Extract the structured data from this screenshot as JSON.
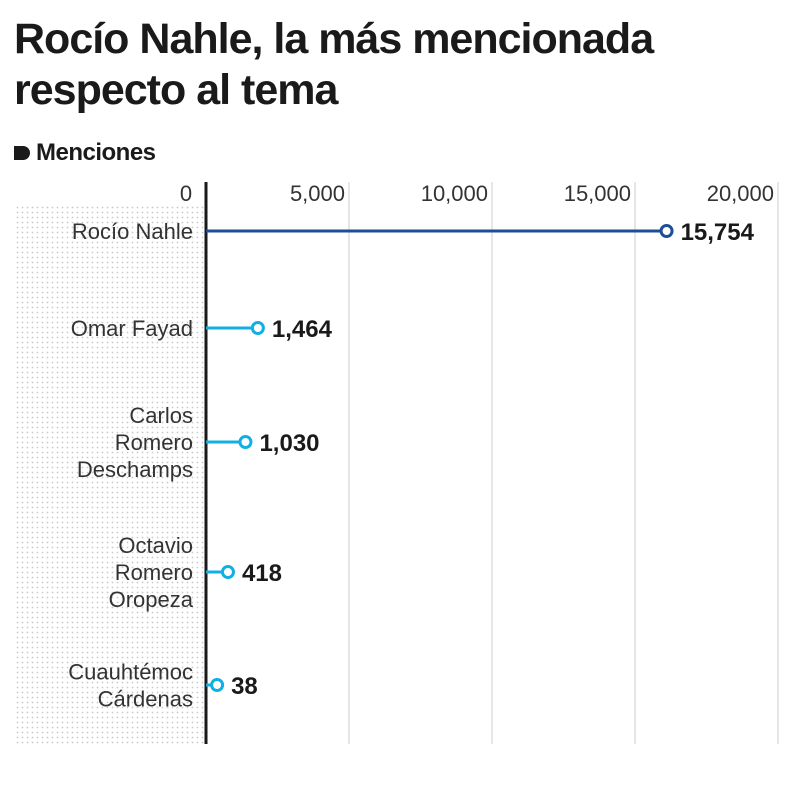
{
  "title": "Rocío Nahle, la más mencionada respecto al tema",
  "subtitle": "Menciones",
  "colors": {
    "highlight": "#1f4e96",
    "secondary": "#10b0e4",
    "axis": "#1a1a1a",
    "grid": "#cccccc",
    "dots": "#c8c8c8"
  },
  "chart_data": {
    "type": "lollipop",
    "orientation": "horizontal",
    "title": "Rocío Nahle, la más mencionada respecto al tema",
    "xlabel": "Menciones",
    "xlim": [
      0,
      20000
    ],
    "xticks": [
      0,
      5000,
      10000,
      15000,
      20000
    ],
    "xtick_labels": [
      "0",
      "5,000",
      "10,000",
      "15,000",
      "20,000"
    ],
    "grid": true,
    "categories": [
      [
        "Rocío Nahle"
      ],
      [
        "Omar Fayad"
      ],
      [
        "Carlos",
        "Romero",
        "Deschamps"
      ],
      [
        "Octavio",
        "Romero",
        "Oropeza"
      ],
      [
        "Cuauhtémoc",
        "Cárdenas"
      ]
    ],
    "values": [
      15754,
      1464,
      1030,
      418,
      38
    ],
    "value_labels": [
      "15,754",
      "1,464",
      "1,030",
      "418",
      "38"
    ],
    "highlighted_index": 0
  }
}
